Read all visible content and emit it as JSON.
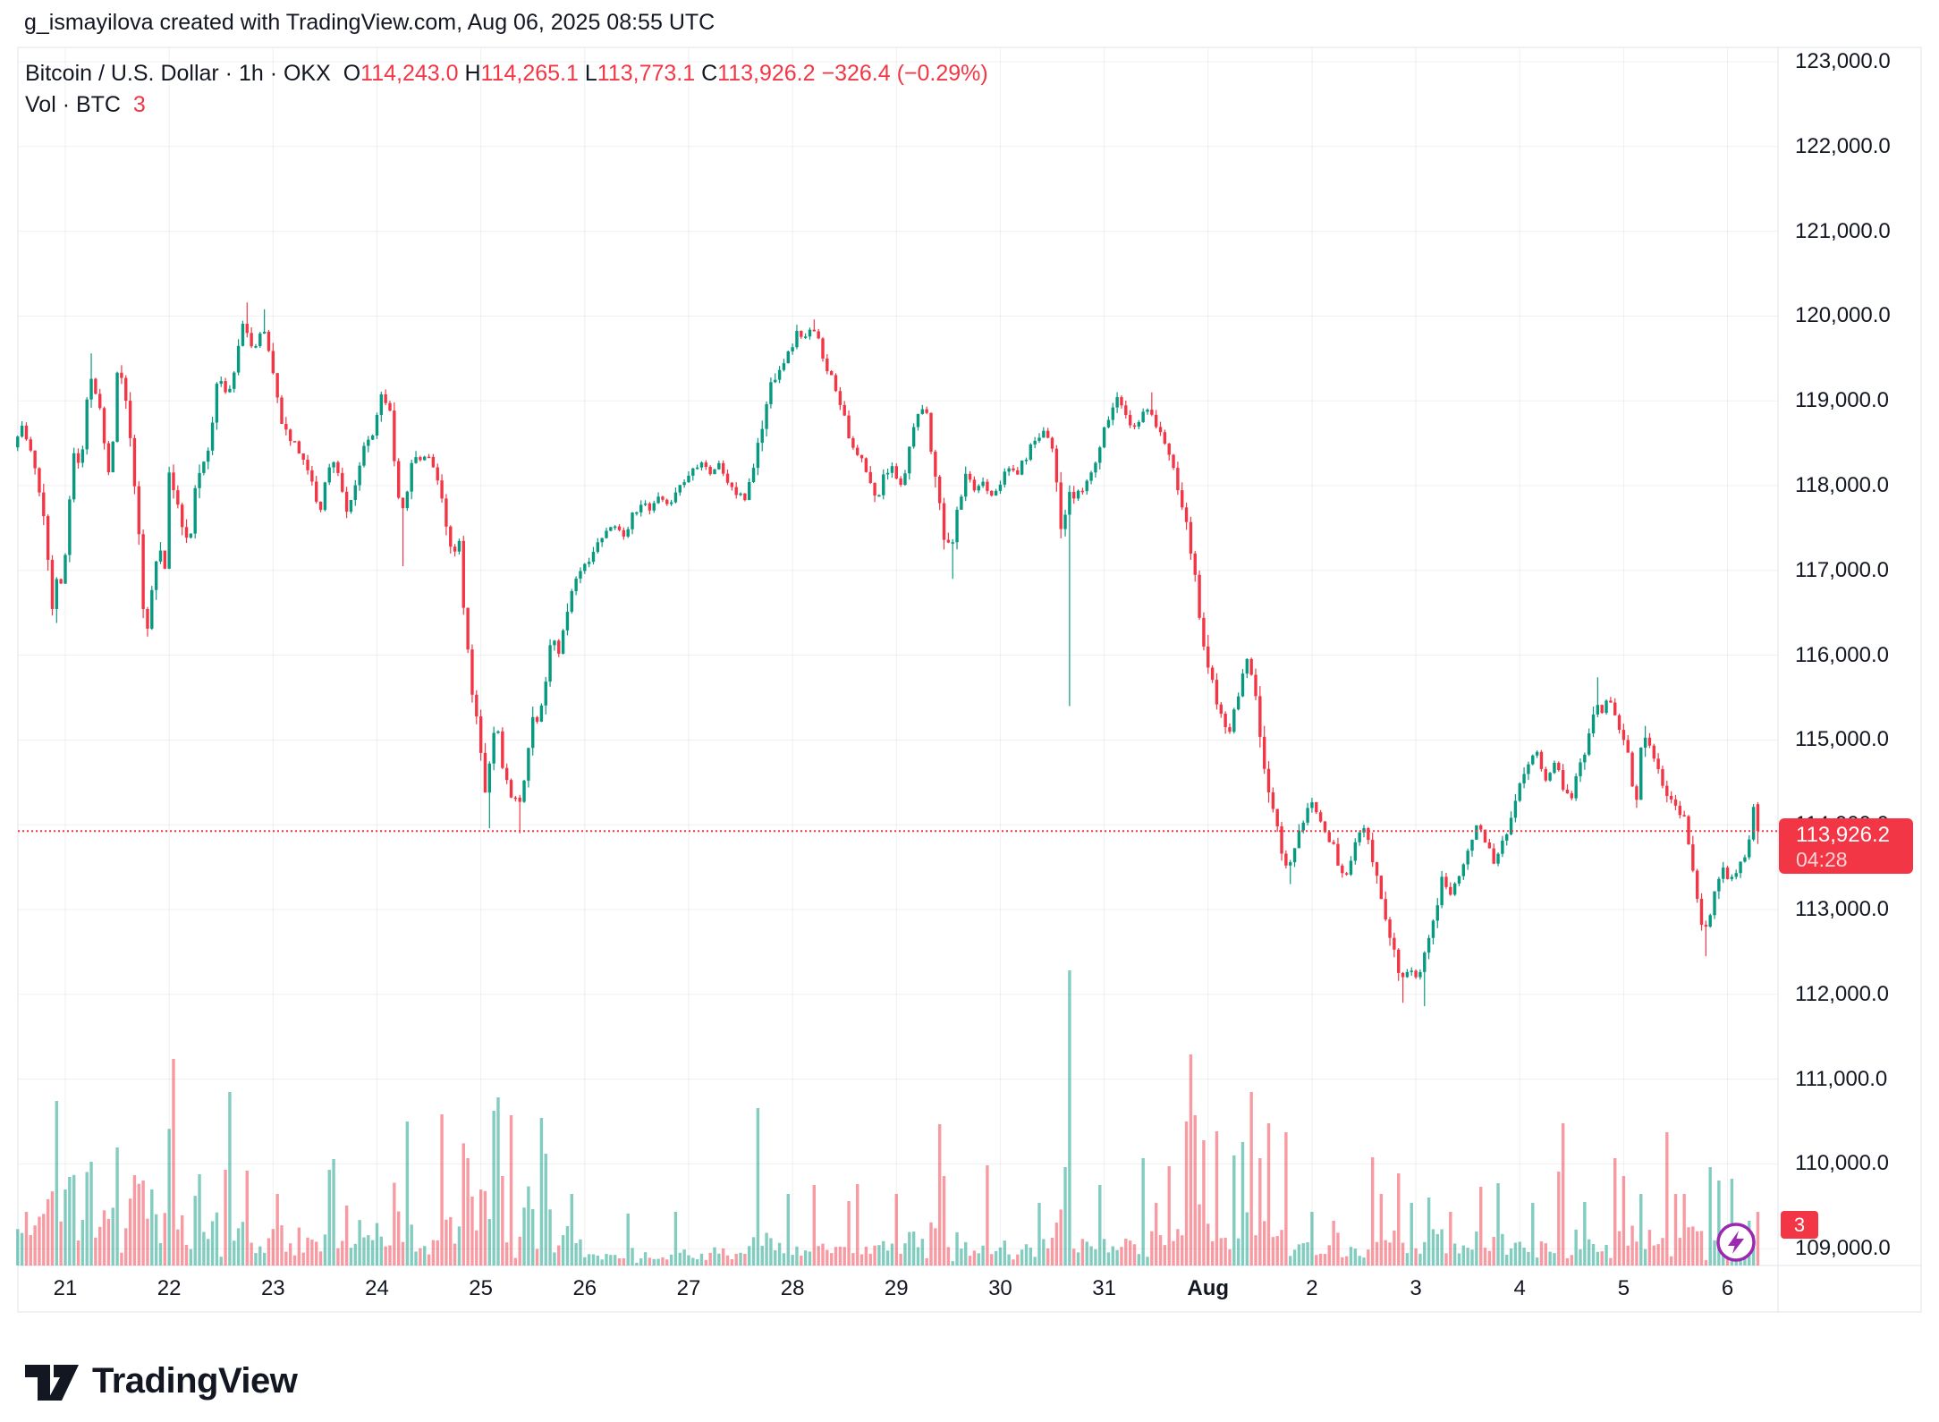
{
  "header": {
    "attribution": "g_ismayilova created with TradingView.com, Aug 06, 2025 08:55 UTC"
  },
  "legend": {
    "title": "Bitcoin / U.S. Dollar · 1h · OKX",
    "ohlc": [
      {
        "label": "O",
        "value": "114,243.0"
      },
      {
        "label": "H",
        "value": "114,265.1"
      },
      {
        "label": "L",
        "value": "113,773.1"
      },
      {
        "label": "C",
        "value": "113,926.2"
      }
    ],
    "change": "−326.4 (−0.29%)",
    "vol_label": "Vol · BTC",
    "vol_value": "3"
  },
  "price_axis": {
    "labels": [
      "123,000.0",
      "122,000.0",
      "121,000.0",
      "120,000.0",
      "119,000.0",
      "118,000.0",
      "117,000.0",
      "116,000.0",
      "115,000.0",
      "114,000.0",
      "113,000.0",
      "112,000.0",
      "111,000.0",
      "110,000.0",
      "109,000.0"
    ],
    "tick_prices": [
      123000,
      122000,
      121000,
      120000,
      119000,
      118000,
      117000,
      116000,
      115000,
      114000,
      113000,
      112000,
      111000,
      110000,
      109000
    ],
    "price_label": "113,926.2",
    "countdown": "04:28",
    "vol_badge": "3"
  },
  "time_axis": {
    "labels": [
      "21",
      "22",
      "23",
      "24",
      "25",
      "26",
      "27",
      "28",
      "29",
      "30",
      "31",
      "Aug",
      "2",
      "3",
      "4",
      "5",
      "6"
    ],
    "bold_index": 11
  },
  "footer": {
    "brand": "TradingView"
  },
  "colors": {
    "up": "#089981",
    "down": "#F23645",
    "accent": "#F23645",
    "text": "#131722",
    "grid": "rgba(42,46,57,0.07)",
    "border": "#E0E3EB",
    "lightning": "#9C27B0"
  },
  "chart_data": {
    "type": "candlestick",
    "symbol": "Bitcoin / U.S. Dollar",
    "interval": "1h",
    "exchange": "OKX",
    "title": "Bitcoin / U.S. Dollar · 1h · OKX",
    "last_candle": {
      "open": 114243.0,
      "high": 114265.1,
      "low": 113773.1,
      "close": 113926.2,
      "change": -326.4,
      "change_pct": -0.29
    },
    "current_price": 113926.2,
    "ylim": [
      108900,
      123400
    ],
    "y_ticks": [
      109000,
      110000,
      111000,
      112000,
      113000,
      114000,
      115000,
      116000,
      117000,
      118000,
      119000,
      120000,
      121000,
      122000,
      123000
    ],
    "x_range": "Jul 20 13:00 UTC to Aug 6 08:00 UTC, hourly",
    "hours_total": 403,
    "first_day_tick_hour": 11,
    "hours_per_day": 24,
    "price_path_keyframes": [
      [
        0,
        118450
      ],
      [
        2,
        118700
      ],
      [
        3.5,
        118450
      ],
      [
        5,
        118200
      ],
      [
        6.5,
        117900
      ],
      [
        8,
        117100
      ],
      [
        9,
        116550
      ],
      [
        10,
        116900
      ],
      [
        11,
        116800
      ],
      [
        12,
        117200
      ],
      [
        13,
        117800
      ],
      [
        14,
        118350
      ],
      [
        15,
        118300
      ],
      [
        16,
        118500
      ],
      [
        17.5,
        119350
      ],
      [
        19,
        119100
      ],
      [
        20.5,
        118800
      ],
      [
        22,
        118150
      ],
      [
        23,
        118500
      ],
      [
        24,
        119350
      ],
      [
        25.5,
        119150
      ],
      [
        27,
        118500
      ],
      [
        28.5,
        117800
      ],
      [
        30,
        116600
      ],
      [
        31,
        116350
      ],
      [
        32.5,
        116900
      ],
      [
        34,
        117250
      ],
      [
        35,
        117100
      ],
      [
        36,
        118100
      ],
      [
        37.5,
        117900
      ],
      [
        39,
        117500
      ],
      [
        40.5,
        117300
      ],
      [
        42,
        117900
      ],
      [
        43.5,
        118200
      ],
      [
        45,
        118500
      ],
      [
        46.5,
        119000
      ],
      [
        47.5,
        119300
      ],
      [
        49,
        119100
      ],
      [
        50.5,
        119200
      ],
      [
        52,
        119600
      ],
      [
        53,
        119950
      ],
      [
        54.5,
        119700
      ],
      [
        56,
        119650
      ],
      [
        57.5,
        119850
      ],
      [
        59,
        119600
      ],
      [
        60.5,
        119200
      ],
      [
        62,
        118800
      ],
      [
        63.5,
        118550
      ],
      [
        65,
        118500
      ],
      [
        66.5,
        118350
      ],
      [
        68,
        118200
      ],
      [
        69.5,
        117900
      ],
      [
        71,
        117750
      ],
      [
        72.5,
        118150
      ],
      [
        74,
        118300
      ],
      [
        75.5,
        118100
      ],
      [
        77,
        117650
      ],
      [
        78.5,
        117850
      ],
      [
        80,
        118250
      ],
      [
        81.5,
        118500
      ],
      [
        83,
        118600
      ],
      [
        84.5,
        119000
      ],
      [
        85.5,
        119150
      ],
      [
        87,
        118800
      ],
      [
        88.5,
        118100
      ],
      [
        89.5,
        117650
      ],
      [
        91,
        118000
      ],
      [
        92.5,
        118350
      ],
      [
        94,
        118300
      ],
      [
        95.5,
        118400
      ],
      [
        97,
        118200
      ],
      [
        98.5,
        117900
      ],
      [
        100,
        117500
      ],
      [
        101.5,
        117150
      ],
      [
        103,
        117350
      ],
      [
        104.5,
        116300
      ],
      [
        106,
        115500
      ],
      [
        107.5,
        115000
      ],
      [
        109,
        114400
      ],
      [
        110,
        114800
      ],
      [
        111.5,
        115200
      ],
      [
        113,
        114700
      ],
      [
        114.5,
        114350
      ],
      [
        116,
        114300
      ],
      [
        117,
        114250
      ],
      [
        118.5,
        114800
      ],
      [
        120,
        115250
      ],
      [
        121.5,
        115200
      ],
      [
        123,
        115750
      ],
      [
        124.5,
        116250
      ],
      [
        126,
        116050
      ],
      [
        127.5,
        116400
      ],
      [
        129,
        116800
      ],
      [
        131,
        116950
      ],
      [
        133,
        117150
      ],
      [
        135,
        117300
      ],
      [
        137,
        117450
      ],
      [
        139,
        117550
      ],
      [
        141,
        117400
      ],
      [
        143,
        117650
      ],
      [
        145,
        117800
      ],
      [
        147,
        117700
      ],
      [
        149,
        117850
      ],
      [
        151,
        117750
      ],
      [
        153,
        117950
      ],
      [
        155,
        118050
      ],
      [
        157,
        118200
      ],
      [
        159,
        118300
      ],
      [
        161,
        118150
      ],
      [
        163,
        118250
      ],
      [
        165,
        118050
      ],
      [
        167,
        117900
      ],
      [
        169,
        117850
      ],
      [
        171,
        118250
      ],
      [
        173,
        118700
      ],
      [
        175,
        119200
      ],
      [
        177,
        119400
      ],
      [
        179,
        119550
      ],
      [
        181,
        119800
      ],
      [
        183,
        119750
      ],
      [
        184.5,
        119850
      ],
      [
        186,
        119700
      ],
      [
        188,
        119400
      ],
      [
        190,
        119150
      ],
      [
        192,
        118850
      ],
      [
        194,
        118400
      ],
      [
        196,
        118300
      ],
      [
        198,
        118000
      ],
      [
        199.5,
        117800
      ],
      [
        201,
        118100
      ],
      [
        203,
        118250
      ],
      [
        205,
        118000
      ],
      [
        207,
        118450
      ],
      [
        209,
        118800
      ],
      [
        210.5,
        118950
      ],
      [
        212,
        118500
      ],
      [
        213.5,
        117900
      ],
      [
        215,
        117400
      ],
      [
        216.5,
        117250
      ],
      [
        218,
        117650
      ],
      [
        220,
        118100
      ],
      [
        222,
        117950
      ],
      [
        224,
        118050
      ],
      [
        226,
        117900
      ],
      [
        228,
        118050
      ],
      [
        230,
        118200
      ],
      [
        232,
        118150
      ],
      [
        234,
        118350
      ],
      [
        236,
        118550
      ],
      [
        238,
        118650
      ],
      [
        240,
        118500
      ],
      [
        241.5,
        117850
      ],
      [
        242.5,
        117250
      ],
      [
        243.5,
        117950
      ],
      [
        245,
        117850
      ],
      [
        247,
        117950
      ],
      [
        249,
        118150
      ],
      [
        251,
        118450
      ],
      [
        253,
        118800
      ],
      [
        255,
        119050
      ],
      [
        256.5,
        118950
      ],
      [
        258,
        118700
      ],
      [
        259.5,
        118750
      ],
      [
        261,
        118850
      ],
      [
        262.5,
        118950
      ],
      [
        264,
        118700
      ],
      [
        265.5,
        118550
      ],
      [
        267,
        118350
      ],
      [
        268.5,
        118100
      ],
      [
        270,
        117700
      ],
      [
        271.5,
        117400
      ],
      [
        273,
        116900
      ],
      [
        274.5,
        116350
      ],
      [
        276,
        115850
      ],
      [
        277.5,
        115600
      ],
      [
        279,
        115250
      ],
      [
        280.5,
        115050
      ],
      [
        282,
        115300
      ],
      [
        283.5,
        115650
      ],
      [
        285,
        115950
      ],
      [
        286.5,
        115600
      ],
      [
        288,
        115050
      ],
      [
        289.5,
        114550
      ],
      [
        291,
        114150
      ],
      [
        292.5,
        113850
      ],
      [
        294,
        113500
      ],
      [
        295.5,
        113650
      ],
      [
        297,
        113900
      ],
      [
        298.5,
        114100
      ],
      [
        300,
        114250
      ],
      [
        301.5,
        114150
      ],
      [
        303,
        113950
      ],
      [
        304.5,
        113800
      ],
      [
        306,
        113550
      ],
      [
        307.5,
        113350
      ],
      [
        309,
        113600
      ],
      [
        310.5,
        113850
      ],
      [
        312,
        113950
      ],
      [
        313.5,
        113650
      ],
      [
        315,
        113350
      ],
      [
        316.5,
        113000
      ],
      [
        318,
        112700
      ],
      [
        319.5,
        112350
      ],
      [
        321,
        112200
      ],
      [
        322.5,
        112300
      ],
      [
        324,
        112200
      ],
      [
        325.5,
        112350
      ],
      [
        327,
        112700
      ],
      [
        328.5,
        113000
      ],
      [
        330,
        113350
      ],
      [
        332,
        113200
      ],
      [
        334,
        113400
      ],
      [
        336,
        113750
      ],
      [
        338,
        114000
      ],
      [
        340,
        113800
      ],
      [
        342,
        113550
      ],
      [
        344,
        113800
      ],
      [
        346,
        114100
      ],
      [
        348,
        114450
      ],
      [
        350,
        114700
      ],
      [
        352,
        114850
      ],
      [
        354,
        114550
      ],
      [
        356,
        114750
      ],
      [
        358,
        114450
      ],
      [
        360,
        114350
      ],
      [
        362,
        114700
      ],
      [
        364,
        115100
      ],
      [
        365.5,
        115500
      ],
      [
        367,
        115300
      ],
      [
        368.5,
        115550
      ],
      [
        370,
        115350
      ],
      [
        371.5,
        115100
      ],
      [
        373,
        114850
      ],
      [
        375,
        114250
      ],
      [
        376.5,
        115100
      ],
      [
        378,
        114950
      ],
      [
        380,
        114700
      ],
      [
        382,
        114350
      ],
      [
        384,
        114200
      ],
      [
        386,
        114050
      ],
      [
        388,
        113500
      ],
      [
        389.5,
        112900
      ],
      [
        390.5,
        112700
      ],
      [
        392,
        112950
      ],
      [
        393.5,
        113300
      ],
      [
        395,
        113500
      ],
      [
        396.5,
        113300
      ],
      [
        398,
        113450
      ],
      [
        399.5,
        113600
      ],
      [
        401,
        113800
      ],
      [
        402,
        114243
      ],
      [
        403,
        113926.2
      ]
    ],
    "wick_events": {
      "lows": [
        [
          9,
          116380
        ],
        [
          30,
          116220
        ],
        [
          89,
          117050
        ],
        [
          109,
          113960
        ],
        [
          116,
          113900
        ],
        [
          216,
          116900
        ],
        [
          243,
          115400
        ],
        [
          294,
          113300
        ],
        [
          320,
          111900
        ],
        [
          325,
          111860
        ],
        [
          390,
          112450
        ],
        [
          402,
          113773.1
        ]
      ],
      "highs": [
        [
          17,
          119560
        ],
        [
          24,
          119420
        ],
        [
          53,
          120160
        ],
        [
          57,
          120080
        ],
        [
          184,
          119960
        ],
        [
          262,
          119100
        ],
        [
          365,
          115740
        ],
        [
          402,
          114265.1
        ]
      ]
    },
    "volume_profile": [
      [
        0,
        1.0
      ],
      [
        30,
        1.0
      ],
      [
        55,
        0.85
      ],
      [
        70,
        0.7
      ],
      [
        90,
        0.9
      ],
      [
        122,
        1.0
      ],
      [
        132,
        0.45
      ],
      [
        150,
        0.4
      ],
      [
        165,
        0.5
      ],
      [
        172,
        0.7
      ],
      [
        186,
        0.65
      ],
      [
        200,
        0.55
      ],
      [
        212,
        0.7
      ],
      [
        228,
        0.55
      ],
      [
        240,
        0.8
      ],
      [
        250,
        0.7
      ],
      [
        262,
        0.8
      ],
      [
        280,
        1.0
      ],
      [
        298,
        0.55
      ],
      [
        310,
        0.5
      ],
      [
        320,
        0.8
      ],
      [
        330,
        0.6
      ],
      [
        342,
        0.6
      ],
      [
        352,
        0.55
      ],
      [
        365,
        0.7
      ],
      [
        380,
        0.8
      ],
      [
        395,
        0.6
      ],
      [
        403,
        0.6
      ]
    ],
    "volume_spikes": [
      [
        2,
        60
      ],
      [
        9,
        184
      ],
      [
        11,
        85
      ],
      [
        17,
        116
      ],
      [
        23,
        132
      ],
      [
        27,
        101
      ],
      [
        29,
        95
      ],
      [
        36,
        231
      ],
      [
        42,
        102
      ],
      [
        48,
        107
      ],
      [
        49,
        194
      ],
      [
        53,
        106
      ],
      [
        60,
        80
      ],
      [
        72,
        107
      ],
      [
        73,
        119
      ],
      [
        76,
        67
      ],
      [
        90,
        161
      ],
      [
        98,
        169
      ],
      [
        104,
        120
      ],
      [
        110,
        173
      ],
      [
        111,
        188
      ],
      [
        112,
        100
      ],
      [
        114,
        168
      ],
      [
        121,
        165
      ],
      [
        122,
        125
      ],
      [
        128,
        80
      ],
      [
        141,
        58
      ],
      [
        152,
        60
      ],
      [
        171,
        176
      ],
      [
        178,
        80
      ],
      [
        184,
        90
      ],
      [
        192,
        72
      ],
      [
        194,
        91
      ],
      [
        203,
        80
      ],
      [
        213,
        158
      ],
      [
        214,
        100
      ],
      [
        224,
        112
      ],
      [
        236,
        70
      ],
      [
        242,
        110
      ],
      [
        243,
        330
      ],
      [
        250,
        90
      ],
      [
        260,
        120
      ],
      [
        263,
        70
      ],
      [
        266,
        111
      ],
      [
        270,
        161
      ],
      [
        271,
        236
      ],
      [
        272,
        168
      ],
      [
        274,
        140
      ],
      [
        277,
        150
      ],
      [
        281,
        123
      ],
      [
        283,
        138
      ],
      [
        285,
        194
      ],
      [
        287,
        120
      ],
      [
        289,
        159
      ],
      [
        293,
        149
      ],
      [
        299,
        60
      ],
      [
        304,
        50
      ],
      [
        313,
        121
      ],
      [
        315,
        80
      ],
      [
        319,
        103
      ],
      [
        322,
        70
      ],
      [
        326,
        76
      ],
      [
        331,
        60
      ],
      [
        338,
        88
      ],
      [
        342,
        92
      ],
      [
        350,
        70
      ],
      [
        356,
        105
      ],
      [
        357,
        159
      ],
      [
        362,
        71
      ],
      [
        369,
        120
      ],
      [
        371,
        100
      ],
      [
        375,
        80
      ],
      [
        381,
        149
      ],
      [
        383,
        80
      ],
      [
        385,
        80
      ],
      [
        391,
        110
      ],
      [
        393,
        95
      ],
      [
        396,
        97
      ],
      [
        400,
        50
      ],
      [
        402,
        60
      ]
    ],
    "volume_color_opacity": 0.5,
    "grid": true,
    "legend_position": "top-left"
  }
}
